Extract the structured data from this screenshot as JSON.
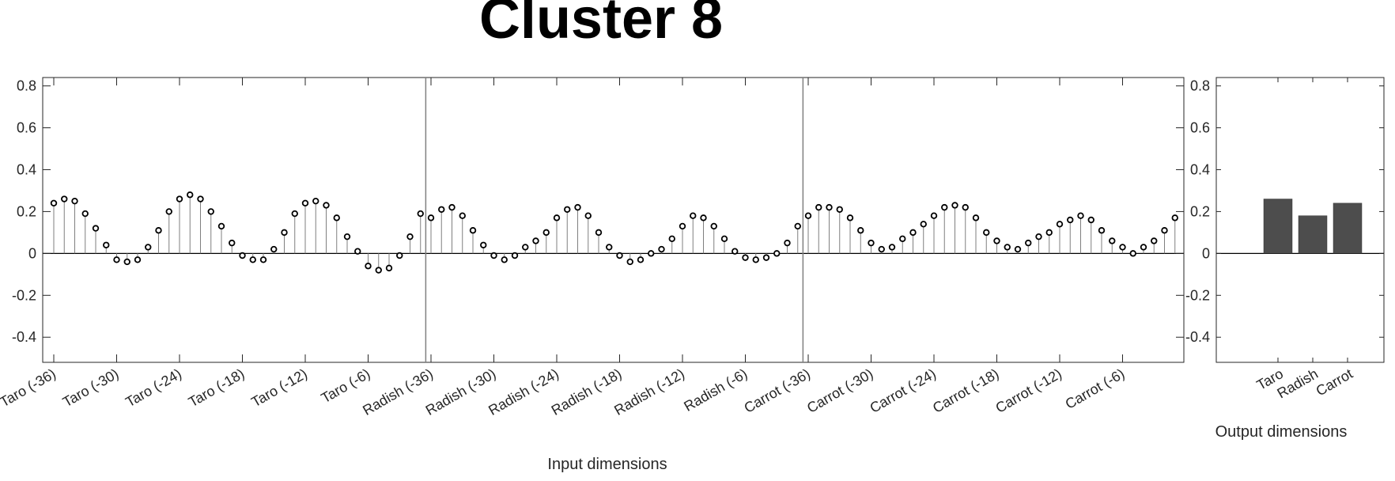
{
  "title": "Cluster 8",
  "chart_data": [
    {
      "type": "stem",
      "xlabel": "Input dimensions",
      "ylabel": "",
      "ylim": [
        -0.52,
        0.84
      ],
      "yticks": [
        -0.4,
        -0.2,
        0,
        0.2,
        0.4,
        0.6,
        0.8
      ],
      "ytick_labels": [
        "-0.4",
        "-0.2",
        "0",
        "0.2",
        "0.4",
        "0.6",
        "0.8"
      ],
      "group_separators_after": [
        36,
        72
      ],
      "xtick_labels": [
        "Taro (-36)",
        "Taro (-30)",
        "Taro (-24)",
        "Taro (-18)",
        "Taro (-12)",
        "Taro (-6)",
        "Radish (-36)",
        "Radish (-30)",
        "Radish (-24)",
        "Radish (-18)",
        "Radish (-12)",
        "Radish (-6)",
        "Carrot (-36)",
        "Carrot (-30)",
        "Carrot (-24)",
        "Carrot (-18)",
        "Carrot (-12)",
        "Carrot (-6)"
      ],
      "series": [
        {
          "values": [
            0.24,
            0.26,
            0.25,
            0.19,
            0.12,
            0.04,
            -0.03,
            -0.04,
            -0.03,
            0.03,
            0.11,
            0.2,
            0.26,
            0.28,
            0.26,
            0.2,
            0.13,
            0.05,
            -0.01,
            -0.03,
            -0.03,
            0.02,
            0.1,
            0.19,
            0.24,
            0.25,
            0.23,
            0.17,
            0.08,
            0.01,
            -0.06,
            -0.08,
            -0.07,
            -0.01,
            0.08,
            0.19,
            0.17,
            0.21,
            0.22,
            0.18,
            0.11,
            0.04,
            -0.01,
            -0.03,
            -0.01,
            0.03,
            0.06,
            0.1,
            0.17,
            0.21,
            0.22,
            0.18,
            0.1,
            0.03,
            -0.01,
            -0.04,
            -0.03,
            0.0,
            0.02,
            0.07,
            0.13,
            0.18,
            0.17,
            0.13,
            0.07,
            0.01,
            -0.02,
            -0.03,
            -0.02,
            0.0,
            0.05,
            0.13,
            0.18,
            0.22,
            0.22,
            0.21,
            0.17,
            0.11,
            0.05,
            0.02,
            0.03,
            0.07,
            0.1,
            0.14,
            0.18,
            0.22,
            0.23,
            0.22,
            0.17,
            0.1,
            0.06,
            0.03,
            0.02,
            0.05,
            0.08,
            0.1,
            0.14,
            0.16,
            0.18,
            0.16,
            0.11,
            0.06,
            0.03,
            0.0,
            0.03,
            0.06,
            0.11,
            0.17
          ]
        }
      ]
    },
    {
      "type": "bar",
      "xlabel": "Output dimensions",
      "ylabel": "",
      "ylim": [
        -0.52,
        0.84
      ],
      "yticks": [
        -0.4,
        -0.2,
        0,
        0.2,
        0.4,
        0.6,
        0.8
      ],
      "ytick_labels": [
        "-0.4",
        "-0.2",
        "0",
        "0.2",
        "0.4",
        "0.6",
        "0.8"
      ],
      "categories": [
        "Taro",
        "Radish",
        "Carrot"
      ],
      "values": [
        0.26,
        0.18,
        0.24
      ],
      "bar_color": "#4d4d4d"
    }
  ]
}
